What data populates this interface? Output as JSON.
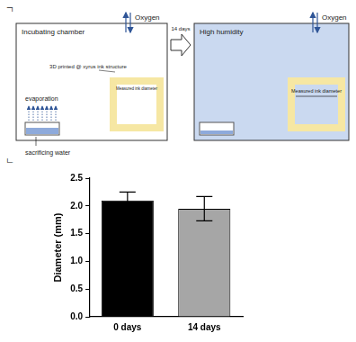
{
  "diagram": {
    "panel_labels": [
      "ㄱ",
      "ㄴ"
    ],
    "left_box": {
      "title": "Incubating chamber",
      "oxygen": "Oxygen",
      "evaporation": "evaporation",
      "water": "sacrificing water",
      "structure": "3D printed @ xyrus ink structure",
      "measure": "Measured ink diameter"
    },
    "transition": "14 days",
    "right_box": {
      "title": "High humidity",
      "oxygen": "Oxygen",
      "measure": "Measured ink diameter"
    }
  },
  "chart_data": {
    "type": "bar",
    "categories": [
      "0 days",
      "14 days"
    ],
    "values": [
      2.1,
      1.95
    ],
    "errors": [
      0.15,
      0.22
    ],
    "colors": [
      "#000000",
      "#a6a6a6"
    ],
    "y_label": "Diameter (mm)",
    "ylim": [
      0,
      2.5
    ],
    "yticks": [
      {
        "value": 0,
        "label": "0.0"
      },
      0.5,
      {
        "value": 1,
        "label": "1.0"
      },
      1.5,
      {
        "value": 2,
        "label": "2.0"
      },
      2.5
    ],
    "grid": false
  }
}
